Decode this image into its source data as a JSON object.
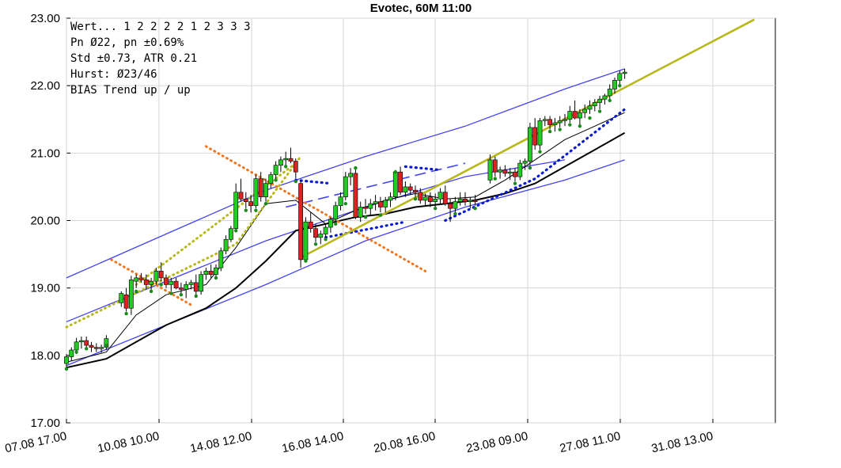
{
  "chart_data": {
    "type": "candlestick",
    "title": "Evotec, 60M 11:00",
    "xlabel": "",
    "ylabel": "",
    "ylim": [
      17.0,
      23.0
    ],
    "grid": true,
    "x_tick_labels": [
      "07.08 17.00",
      "10.08 10.00",
      "14.08 12.00",
      "16.08 14.00",
      "20.08 16.00",
      "23.08 09.00",
      "27.08 11.00",
      "31.08 13.00"
    ],
    "y_tick_labels": [
      "17.00",
      "18.00",
      "19.00",
      "20.00",
      "21.00",
      "22.00",
      "23.00"
    ],
    "info_lines": [
      "Wert... 1  2  2  2  2  1  2  3  3  3",
      "Pn  Ø22, pn ±0.69%",
      "Std ±0.73, ATR 0.21",
      "Hurst: Ø23/46",
      "BIAS Trend up / up"
    ],
    "colors": {
      "up_candle": "#22cc22",
      "down_candle": "#dd2222",
      "channel": "#4444ee",
      "trend": "#b8b818",
      "dotted_orange": "#ee7722",
      "dotted_blue": "#0a1ad0",
      "ma_black": "#000000"
    },
    "candles": [
      [
        0,
        17.88,
        18.02,
        17.82,
        17.98
      ],
      [
        1,
        17.98,
        18.12,
        17.92,
        18.08
      ],
      [
        2,
        18.08,
        18.26,
        18.02,
        18.2
      ],
      [
        3,
        18.2,
        18.28,
        18.1,
        18.22
      ],
      [
        4,
        18.22,
        18.28,
        18.12,
        18.15
      ],
      [
        5,
        18.15,
        18.2,
        18.05,
        18.12
      ],
      [
        6,
        18.12,
        18.18,
        18.05,
        18.1
      ],
      [
        7,
        18.1,
        18.16,
        18.04,
        18.12
      ],
      [
        8,
        18.12,
        18.3,
        18.08,
        18.25
      ],
      [
        11,
        18.78,
        18.95,
        18.72,
        18.92
      ],
      [
        12,
        18.9,
        19.0,
        18.65,
        18.7
      ],
      [
        13,
        18.7,
        19.18,
        18.6,
        19.12
      ],
      [
        14,
        19.1,
        19.2,
        19.0,
        19.15
      ],
      [
        15,
        19.15,
        19.22,
        19.08,
        19.12
      ],
      [
        16,
        19.12,
        19.2,
        18.98,
        19.05
      ],
      [
        17,
        19.05,
        19.15,
        18.95,
        19.1
      ],
      [
        18,
        19.1,
        19.3,
        19.05,
        19.25
      ],
      [
        19,
        19.25,
        19.38,
        19.1,
        19.15
      ],
      [
        20,
        19.15,
        19.2,
        19.0,
        19.05
      ],
      [
        21,
        19.05,
        19.15,
        18.95,
        19.1
      ],
      [
        22,
        19.1,
        19.15,
        18.98,
        19.0
      ],
      [
        23,
        19.0,
        19.08,
        18.92,
        18.98
      ],
      [
        24,
        18.98,
        19.1,
        18.85,
        19.05
      ],
      [
        25,
        19.05,
        19.12,
        18.98,
        19.08
      ],
      [
        26,
        19.08,
        19.2,
        18.9,
        18.95
      ],
      [
        27,
        18.95,
        19.25,
        18.9,
        19.2
      ],
      [
        28,
        19.2,
        19.3,
        19.12,
        19.25
      ],
      [
        29,
        19.25,
        19.35,
        19.15,
        19.2
      ],
      [
        30,
        19.2,
        19.35,
        19.15,
        19.3
      ],
      [
        31,
        19.3,
        19.6,
        19.25,
        19.55
      ],
      [
        32,
        19.55,
        19.78,
        19.5,
        19.72
      ],
      [
        33,
        19.72,
        19.92,
        19.68,
        19.88
      ],
      [
        34,
        19.88,
        20.55,
        19.85,
        20.42
      ],
      [
        35,
        20.42,
        20.62,
        20.28,
        20.32
      ],
      [
        36,
        20.32,
        20.42,
        20.18,
        20.28
      ],
      [
        37,
        20.28,
        20.38,
        20.12,
        20.22
      ],
      [
        38,
        20.22,
        20.68,
        20.18,
        20.62
      ],
      [
        39,
        20.62,
        20.72,
        20.28,
        20.35
      ],
      [
        40,
        20.35,
        20.62,
        20.28,
        20.55
      ],
      [
        41,
        20.55,
        20.72,
        20.48,
        20.68
      ],
      [
        42,
        20.68,
        20.88,
        20.62,
        20.82
      ],
      [
        43,
        20.82,
        20.95,
        20.72,
        20.9
      ],
      [
        44,
        20.9,
        21.02,
        20.82,
        20.92
      ],
      [
        45,
        20.92,
        21.08,
        20.85,
        20.88
      ],
      [
        46,
        20.88,
        20.92,
        20.62,
        20.72
      ],
      [
        47,
        20.55,
        20.6,
        19.3,
        19.42
      ],
      [
        48,
        19.42,
        20.05,
        19.38,
        19.98
      ],
      [
        49,
        19.98,
        20.12,
        19.82,
        19.88
      ],
      [
        50,
        19.88,
        19.95,
        19.68,
        19.75
      ],
      [
        51,
        19.75,
        19.85,
        19.65,
        19.8
      ],
      [
        52,
        19.8,
        19.95,
        19.72,
        19.9
      ],
      [
        53,
        19.9,
        20.05,
        19.82,
        20.02
      ],
      [
        54,
        20.02,
        20.28,
        19.95,
        20.22
      ],
      [
        55,
        20.22,
        20.42,
        20.15,
        20.35
      ],
      [
        56,
        20.35,
        20.72,
        20.3,
        20.65
      ],
      [
        57,
        20.65,
        20.78,
        20.52,
        20.7
      ],
      [
        58,
        20.7,
        20.8,
        20.02,
        20.05
      ],
      [
        59,
        20.05,
        20.28,
        19.98,
        20.2
      ],
      [
        60,
        20.2,
        20.32,
        20.1,
        20.18
      ],
      [
        61,
        20.18,
        20.32,
        20.08,
        20.25
      ],
      [
        62,
        20.25,
        20.38,
        20.15,
        20.28
      ],
      [
        63,
        20.28,
        20.35,
        20.12,
        20.2
      ],
      [
        64,
        20.2,
        20.35,
        20.12,
        20.3
      ],
      [
        65,
        20.3,
        20.42,
        20.2,
        20.35
      ],
      [
        66,
        20.35,
        20.75,
        20.3,
        20.72
      ],
      [
        67,
        20.72,
        20.8,
        20.38,
        20.42
      ],
      [
        68,
        20.42,
        20.58,
        20.35,
        20.5
      ],
      [
        69,
        20.5,
        20.55,
        20.38,
        20.45
      ],
      [
        70,
        20.45,
        20.52,
        20.35,
        20.42
      ],
      [
        71,
        20.42,
        20.48,
        20.25,
        20.3
      ],
      [
        72,
        20.3,
        20.4,
        20.22,
        20.35
      ],
      [
        73,
        20.35,
        20.42,
        20.2,
        20.28
      ],
      [
        74,
        20.28,
        20.4,
        20.2,
        20.32
      ],
      [
        75,
        20.32,
        20.48,
        20.25,
        20.42
      ],
      [
        76,
        20.42,
        20.52,
        20.22,
        20.25
      ],
      [
        77,
        20.25,
        20.32,
        19.98,
        20.18
      ],
      [
        78,
        20.18,
        20.35,
        20.12,
        20.28
      ],
      [
        79,
        20.28,
        20.42,
        20.22,
        20.32
      ],
      [
        80,
        20.32,
        20.42,
        20.22,
        20.28
      ],
      [
        81,
        20.28,
        20.35,
        20.18,
        20.3
      ],
      [
        82,
        20.3,
        20.38,
        20.22,
        20.28
      ],
      [
        85,
        20.6,
        20.98,
        20.55,
        20.9
      ],
      [
        86,
        20.9,
        20.95,
        20.65,
        20.72
      ],
      [
        87,
        20.72,
        20.8,
        20.62,
        20.75
      ],
      [
        88,
        20.75,
        20.82,
        20.65,
        20.7
      ],
      [
        89,
        20.7,
        20.78,
        20.6,
        20.72
      ],
      [
        90,
        20.72,
        20.78,
        20.58,
        20.65
      ],
      [
        91,
        20.65,
        20.9,
        20.6,
        20.85
      ],
      [
        92,
        20.85,
        20.92,
        20.75,
        20.88
      ],
      [
        93,
        20.88,
        21.45,
        20.82,
        21.38
      ],
      [
        94,
        21.38,
        21.52,
        21.05,
        21.12
      ],
      [
        95,
        21.12,
        21.52,
        21.05,
        21.48
      ],
      [
        96,
        21.48,
        21.55,
        21.4,
        21.5
      ],
      [
        97,
        21.5,
        21.55,
        21.35,
        21.42
      ],
      [
        98,
        21.42,
        21.52,
        21.32,
        21.45
      ],
      [
        99,
        21.45,
        21.55,
        21.38,
        21.48
      ],
      [
        100,
        21.48,
        21.58,
        21.4,
        21.5
      ],
      [
        101,
        21.5,
        21.7,
        21.45,
        21.62
      ],
      [
        102,
        21.62,
        21.78,
        21.5,
        21.52
      ],
      [
        103,
        21.52,
        21.65,
        21.42,
        21.6
      ],
      [
        104,
        21.6,
        21.72,
        21.52,
        21.65
      ],
      [
        105,
        21.65,
        21.78,
        21.58,
        21.7
      ],
      [
        106,
        21.7,
        21.8,
        21.62,
        21.75
      ],
      [
        107,
        21.75,
        21.85,
        21.65,
        21.8
      ],
      [
        108,
        21.8,
        21.88,
        21.72,
        21.85
      ],
      [
        109,
        21.85,
        22.02,
        21.8,
        21.95
      ],
      [
        110,
        21.95,
        22.12,
        21.88,
        22.08
      ],
      [
        111,
        22.08,
        22.22,
        22.02,
        22.18
      ],
      [
        112,
        22.18,
        22.25,
        22.1,
        22.2
      ]
    ],
    "channel_upper": [
      [
        0,
        19.15
      ],
      [
        20,
        19.8
      ],
      [
        40,
        20.45
      ],
      [
        60,
        20.95
      ],
      [
        80,
        21.4
      ],
      [
        100,
        21.95
      ],
      [
        112,
        22.25
      ]
    ],
    "channel_middle": [
      [
        0,
        18.5
      ],
      [
        20,
        19.1
      ],
      [
        40,
        19.7
      ],
      [
        60,
        20.2
      ],
      [
        80,
        20.65
      ],
      [
        100,
        20.9
      ]
    ],
    "channel_lower": [
      [
        0,
        17.85
      ],
      [
        20,
        18.45
      ],
      [
        40,
        19.05
      ],
      [
        60,
        19.7
      ],
      [
        80,
        20.2
      ],
      [
        100,
        20.6
      ],
      [
        112,
        20.9
      ]
    ],
    "ma_black": [
      [
        0,
        17.82
      ],
      [
        8,
        17.95
      ],
      [
        14,
        18.2
      ],
      [
        20,
        18.45
      ],
      [
        28,
        18.7
      ],
      [
        34,
        19.0
      ],
      [
        40,
        19.4
      ],
      [
        46,
        19.85
      ],
      [
        52,
        19.95
      ],
      [
        58,
        20.05
      ],
      [
        64,
        20.1
      ],
      [
        70,
        20.2
      ],
      [
        76,
        20.25
      ],
      [
        82,
        20.3
      ],
      [
        88,
        20.4
      ],
      [
        94,
        20.55
      ],
      [
        100,
        20.8
      ],
      [
        106,
        21.05
      ],
      [
        112,
        21.3
      ]
    ],
    "ma_thin": [
      [
        0,
        17.9
      ],
      [
        8,
        18.05
      ],
      [
        14,
        18.6
      ],
      [
        20,
        18.9
      ],
      [
        28,
        19.05
      ],
      [
        34,
        19.6
      ],
      [
        40,
        20.25
      ],
      [
        46,
        20.3
      ],
      [
        52,
        19.95
      ],
      [
        58,
        20.15
      ],
      [
        64,
        20.3
      ],
      [
        70,
        20.4
      ],
      [
        76,
        20.32
      ],
      [
        82,
        20.35
      ],
      [
        88,
        20.6
      ],
      [
        94,
        20.9
      ],
      [
        100,
        21.2
      ],
      [
        106,
        21.4
      ],
      [
        112,
        21.6
      ]
    ],
    "trend_line": [
      [
        47,
        19.45
      ],
      [
        138,
        22.98
      ]
    ],
    "dashed_blue": [
      [
        44,
        20.2
      ],
      [
        80,
        20.85
      ]
    ],
    "orange_dotted": [
      [
        [
          9,
          19.42
        ],
        [
          25,
          18.75
        ]
      ],
      [
        [
          28,
          21.1
        ],
        [
          72,
          19.25
        ]
      ]
    ],
    "yellow_dotted": [
      [
        [
          0,
          18.42
        ],
        [
          34,
          19.65
        ],
        [
          47,
          20.95
        ]
      ],
      [
        [
          14,
          19.05
        ],
        [
          46,
          20.85
        ]
      ]
    ],
    "blue_dotted_segments": [
      [
        [
          46,
          20.6
        ],
        [
          53,
          20.55
        ]
      ],
      [
        [
          52,
          19.75
        ],
        [
          68,
          19.98
        ]
      ],
      [
        [
          68,
          20.8
        ],
        [
          75,
          20.75
        ]
      ],
      [
        [
          76,
          20.0
        ],
        [
          94,
          20.62
        ],
        [
          112,
          21.65
        ]
      ]
    ],
    "dot_markers": [
      [
        0,
        17.8
      ],
      [
        2,
        18.05
      ],
      [
        4,
        18.1
      ],
      [
        8,
        18.15
      ],
      [
        12,
        18.62
      ],
      [
        14,
        18.95
      ],
      [
        17,
        18.95
      ],
      [
        19,
        19.05
      ],
      [
        21,
        18.92
      ],
      [
        23,
        18.9
      ],
      [
        26,
        18.88
      ],
      [
        30,
        19.15
      ],
      [
        34,
        19.85
      ],
      [
        36,
        20.15
      ],
      [
        38,
        20.15
      ],
      [
        40,
        20.25
      ],
      [
        42,
        20.6
      ],
      [
        44,
        20.8
      ],
      [
        46,
        20.58
      ],
      [
        48,
        19.4
      ],
      [
        50,
        19.65
      ],
      [
        52,
        19.72
      ],
      [
        54,
        19.95
      ],
      [
        56,
        20.25
      ],
      [
        58,
        20.78
      ],
      [
        60,
        20.05
      ],
      [
        63,
        20.08
      ],
      [
        66,
        20.72
      ],
      [
        70,
        20.32
      ],
      [
        74,
        20.18
      ],
      [
        78,
        20.1
      ],
      [
        82,
        20.18
      ],
      [
        86,
        20.62
      ],
      [
        90,
        20.55
      ],
      [
        93,
        20.78
      ],
      [
        95,
        21.02
      ],
      [
        97,
        21.32
      ],
      [
        99,
        21.35
      ],
      [
        101,
        21.42
      ],
      [
        103,
        21.4
      ],
      [
        105,
        21.52
      ],
      [
        107,
        21.62
      ],
      [
        109,
        21.78
      ],
      [
        111,
        22.0
      ]
    ]
  }
}
